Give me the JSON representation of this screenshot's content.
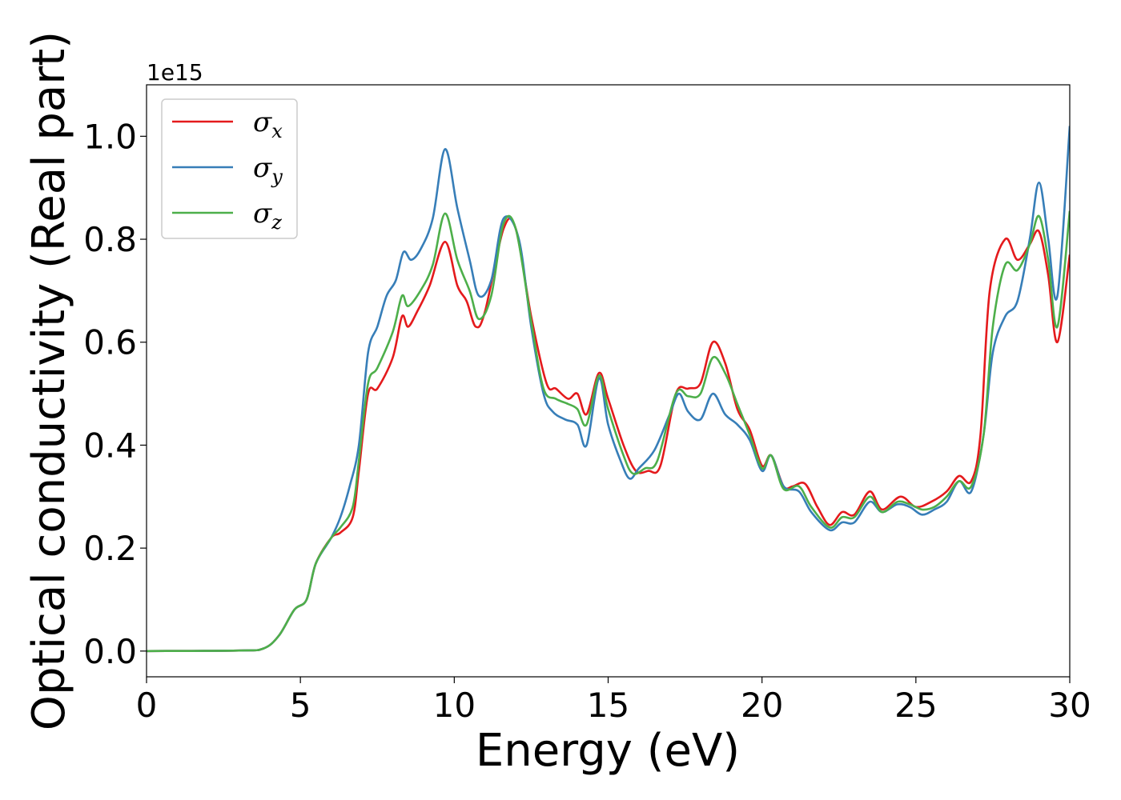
{
  "chart_data": {
    "type": "line",
    "title": "",
    "xlabel": "Energy (eV)",
    "ylabel": "Optical conductivity (Real part)",
    "y_offset_label": "1e15",
    "xlim": [
      0,
      30
    ],
    "ylim": [
      -0.05,
      1.1
    ],
    "x_ticks": [
      0,
      5,
      10,
      15,
      20,
      25,
      30
    ],
    "y_ticks": [
      0.0,
      0.2,
      0.4,
      0.6,
      0.8,
      1.0
    ],
    "x_tick_labels": [
      "0",
      "5",
      "10",
      "15",
      "20",
      "25",
      "30"
    ],
    "y_tick_labels": [
      "0.0",
      "0.2",
      "0.4",
      "0.6",
      "0.8",
      "1.0"
    ],
    "grid": false,
    "legend_position": "upper-left",
    "series": [
      {
        "name": "σx",
        "legend_base": "σ",
        "legend_sub": "x",
        "color": "#e41a1c",
        "points": [
          [
            0,
            0
          ],
          [
            3,
            0.001
          ],
          [
            3.8,
            0.005
          ],
          [
            4.3,
            0.03
          ],
          [
            4.8,
            0.08
          ],
          [
            5.2,
            0.1
          ],
          [
            5.5,
            0.17
          ],
          [
            6,
            0.22
          ],
          [
            6.3,
            0.23
          ],
          [
            6.7,
            0.26
          ],
          [
            6.9,
            0.35
          ],
          [
            7.2,
            0.5
          ],
          [
            7.5,
            0.51
          ],
          [
            8,
            0.57
          ],
          [
            8.3,
            0.65
          ],
          [
            8.5,
            0.63
          ],
          [
            8.8,
            0.66
          ],
          [
            9.2,
            0.71
          ],
          [
            9.7,
            0.795
          ],
          [
            10.1,
            0.71
          ],
          [
            10.4,
            0.68
          ],
          [
            10.7,
            0.63
          ],
          [
            11,
            0.66
          ],
          [
            11.6,
            0.82
          ],
          [
            12,
            0.82
          ],
          [
            12.5,
            0.65
          ],
          [
            13,
            0.52
          ],
          [
            13.3,
            0.51
          ],
          [
            13.7,
            0.49
          ],
          [
            14,
            0.5
          ],
          [
            14.3,
            0.46
          ],
          [
            14.7,
            0.54
          ],
          [
            15,
            0.49
          ],
          [
            15.5,
            0.4
          ],
          [
            15.9,
            0.35
          ],
          [
            16.3,
            0.35
          ],
          [
            16.7,
            0.36
          ],
          [
            17.2,
            0.5
          ],
          [
            17.6,
            0.51
          ],
          [
            18,
            0.52
          ],
          [
            18.4,
            0.6
          ],
          [
            18.8,
            0.56
          ],
          [
            19.2,
            0.47
          ],
          [
            19.6,
            0.43
          ],
          [
            20,
            0.36
          ],
          [
            20.3,
            0.38
          ],
          [
            20.7,
            0.32
          ],
          [
            21,
            0.32
          ],
          [
            21.4,
            0.325
          ],
          [
            21.8,
            0.28
          ],
          [
            22.2,
            0.245
          ],
          [
            22.6,
            0.27
          ],
          [
            23,
            0.265
          ],
          [
            23.5,
            0.31
          ],
          [
            23.9,
            0.275
          ],
          [
            24.5,
            0.3
          ],
          [
            25,
            0.28
          ],
          [
            25.5,
            0.29
          ],
          [
            26,
            0.31
          ],
          [
            26.4,
            0.34
          ],
          [
            26.8,
            0.33
          ],
          [
            27.1,
            0.42
          ],
          [
            27.4,
            0.7
          ],
          [
            27.9,
            0.8
          ],
          [
            28.3,
            0.76
          ],
          [
            28.7,
            0.79
          ],
          [
            29,
            0.815
          ],
          [
            29.3,
            0.73
          ],
          [
            29.6,
            0.6
          ],
          [
            30,
            0.77
          ]
        ]
      },
      {
        "name": "σy",
        "legend_base": "σ",
        "legend_sub": "y",
        "color": "#377eb8",
        "points": [
          [
            0,
            0
          ],
          [
            3,
            0.001
          ],
          [
            3.8,
            0.005
          ],
          [
            4.3,
            0.03
          ],
          [
            4.8,
            0.08
          ],
          [
            5.2,
            0.1
          ],
          [
            5.5,
            0.17
          ],
          [
            6,
            0.22
          ],
          [
            6.3,
            0.26
          ],
          [
            6.6,
            0.32
          ],
          [
            6.9,
            0.4
          ],
          [
            7.2,
            0.58
          ],
          [
            7.5,
            0.63
          ],
          [
            7.8,
            0.69
          ],
          [
            8.1,
            0.72
          ],
          [
            8.35,
            0.775
          ],
          [
            8.6,
            0.76
          ],
          [
            8.9,
            0.78
          ],
          [
            9.3,
            0.84
          ],
          [
            9.7,
            0.975
          ],
          [
            10.1,
            0.86
          ],
          [
            10.5,
            0.76
          ],
          [
            10.8,
            0.69
          ],
          [
            11.2,
            0.72
          ],
          [
            11.6,
            0.84
          ],
          [
            12.1,
            0.8
          ],
          [
            12.5,
            0.63
          ],
          [
            12.9,
            0.5
          ],
          [
            13.2,
            0.465
          ],
          [
            13.6,
            0.45
          ],
          [
            14,
            0.44
          ],
          [
            14.3,
            0.4
          ],
          [
            14.7,
            0.53
          ],
          [
            15,
            0.44
          ],
          [
            15.4,
            0.37
          ],
          [
            15.7,
            0.335
          ],
          [
            16,
            0.355
          ],
          [
            16.5,
            0.39
          ],
          [
            17,
            0.46
          ],
          [
            17.3,
            0.5
          ],
          [
            17.6,
            0.465
          ],
          [
            18,
            0.45
          ],
          [
            18.4,
            0.5
          ],
          [
            18.8,
            0.46
          ],
          [
            19.2,
            0.44
          ],
          [
            19.6,
            0.41
          ],
          [
            20,
            0.35
          ],
          [
            20.3,
            0.38
          ],
          [
            20.7,
            0.32
          ],
          [
            21.2,
            0.31
          ],
          [
            21.6,
            0.27
          ],
          [
            22.2,
            0.235
          ],
          [
            22.6,
            0.25
          ],
          [
            23,
            0.25
          ],
          [
            23.5,
            0.29
          ],
          [
            23.9,
            0.27
          ],
          [
            24.4,
            0.285
          ],
          [
            24.8,
            0.28
          ],
          [
            25.2,
            0.265
          ],
          [
            25.6,
            0.275
          ],
          [
            26,
            0.29
          ],
          [
            26.4,
            0.33
          ],
          [
            26.8,
            0.31
          ],
          [
            27.2,
            0.42
          ],
          [
            27.5,
            0.58
          ],
          [
            27.9,
            0.65
          ],
          [
            28.3,
            0.68
          ],
          [
            28.7,
            0.8
          ],
          [
            29,
            0.91
          ],
          [
            29.3,
            0.8
          ],
          [
            29.6,
            0.69
          ],
          [
            30,
            1.02
          ]
        ]
      },
      {
        "name": "σz",
        "legend_base": "σ",
        "legend_sub": "z",
        "color": "#4daf4a",
        "points": [
          [
            0,
            0
          ],
          [
            3,
            0.001
          ],
          [
            3.8,
            0.005
          ],
          [
            4.3,
            0.03
          ],
          [
            4.8,
            0.08
          ],
          [
            5.2,
            0.1
          ],
          [
            5.5,
            0.17
          ],
          [
            6,
            0.22
          ],
          [
            6.3,
            0.24
          ],
          [
            6.7,
            0.28
          ],
          [
            6.9,
            0.37
          ],
          [
            7.2,
            0.52
          ],
          [
            7.5,
            0.55
          ],
          [
            8,
            0.62
          ],
          [
            8.3,
            0.69
          ],
          [
            8.5,
            0.67
          ],
          [
            8.9,
            0.7
          ],
          [
            9.3,
            0.75
          ],
          [
            9.7,
            0.85
          ],
          [
            10.1,
            0.76
          ],
          [
            10.5,
            0.7
          ],
          [
            10.8,
            0.645
          ],
          [
            11.2,
            0.69
          ],
          [
            11.6,
            0.83
          ],
          [
            12,
            0.82
          ],
          [
            12.5,
            0.64
          ],
          [
            12.9,
            0.51
          ],
          [
            13.3,
            0.49
          ],
          [
            13.7,
            0.48
          ],
          [
            14,
            0.47
          ],
          [
            14.3,
            0.44
          ],
          [
            14.7,
            0.535
          ],
          [
            15,
            0.47
          ],
          [
            15.5,
            0.38
          ],
          [
            15.8,
            0.345
          ],
          [
            16.2,
            0.355
          ],
          [
            16.6,
            0.37
          ],
          [
            17.2,
            0.5
          ],
          [
            17.6,
            0.495
          ],
          [
            18,
            0.5
          ],
          [
            18.4,
            0.57
          ],
          [
            18.8,
            0.54
          ],
          [
            19.2,
            0.48
          ],
          [
            19.6,
            0.42
          ],
          [
            20,
            0.355
          ],
          [
            20.3,
            0.38
          ],
          [
            20.7,
            0.315
          ],
          [
            21.2,
            0.32
          ],
          [
            21.6,
            0.28
          ],
          [
            22.2,
            0.24
          ],
          [
            22.6,
            0.26
          ],
          [
            23,
            0.26
          ],
          [
            23.5,
            0.3
          ],
          [
            23.9,
            0.27
          ],
          [
            24.4,
            0.29
          ],
          [
            24.8,
            0.285
          ],
          [
            25.2,
            0.275
          ],
          [
            25.6,
            0.28
          ],
          [
            26,
            0.3
          ],
          [
            26.4,
            0.33
          ],
          [
            26.8,
            0.32
          ],
          [
            27.2,
            0.42
          ],
          [
            27.5,
            0.63
          ],
          [
            27.9,
            0.75
          ],
          [
            28.3,
            0.74
          ],
          [
            28.7,
            0.79
          ],
          [
            29,
            0.845
          ],
          [
            29.3,
            0.76
          ],
          [
            29.6,
            0.63
          ],
          [
            30,
            0.855
          ]
        ]
      }
    ]
  }
}
